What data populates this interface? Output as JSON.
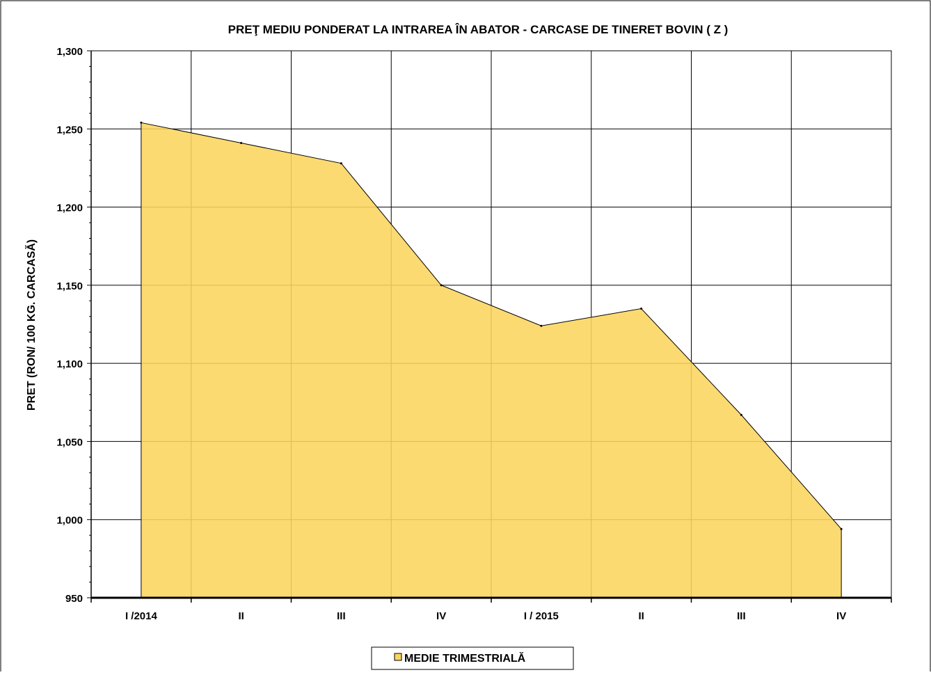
{
  "chart_data": {
    "type": "area",
    "title": "PREŢ MEDIU PONDERAT LA INTRAREA ÎN ABATOR - CARCASE DE TINERET BOVIN ( Z )",
    "xlabel": "",
    "ylabel": "PRET (RON/ 100 KG. CARCASĂ)",
    "categories": [
      "I /2014",
      "II",
      "III",
      "IV",
      "I / 2015",
      "II",
      "III",
      "IV"
    ],
    "y_tick_labels": [
      "950",
      "1,000",
      "1,050",
      "1,100",
      "1,150",
      "1,200",
      "1,250",
      "1,300"
    ],
    "y_ticks": [
      950,
      1000,
      1050,
      1100,
      1150,
      1200,
      1250,
      1300
    ],
    "ylim": [
      950,
      1300
    ],
    "grid": true,
    "legend_position": "bottom-center",
    "series": [
      {
        "name": "MEDIE TRIMESTRIALĂ",
        "values": [
          1254,
          1241,
          1228,
          1150,
          1124,
          1135,
          1067,
          994
        ],
        "color": "#FCD55F"
      }
    ]
  },
  "colors": {
    "area_fill": "#FCD55F",
    "line": "#000000",
    "grid": "#000000",
    "background": "#ffffff"
  }
}
